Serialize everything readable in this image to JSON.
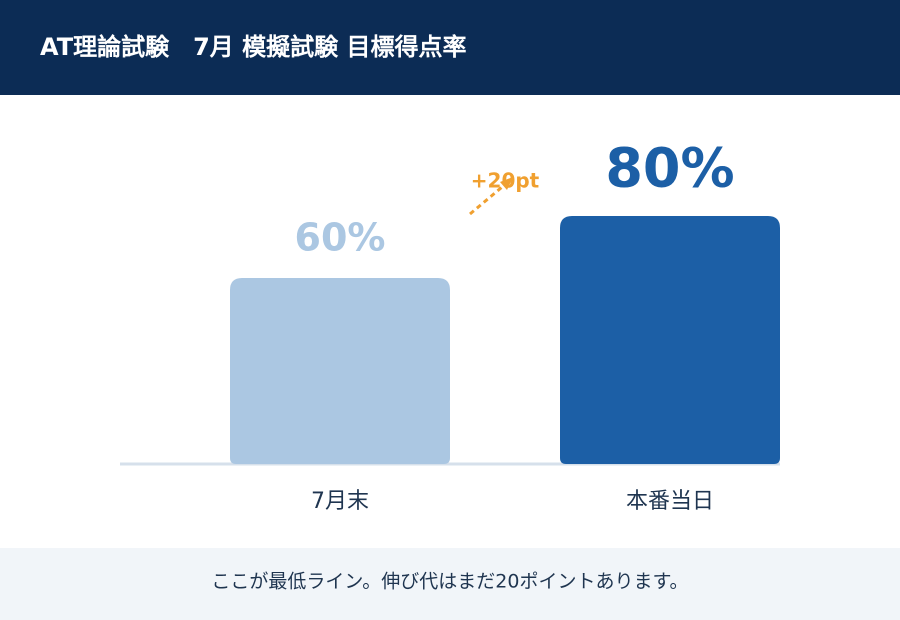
{
  "chart_data": {
    "type": "bar",
    "title": "AT理論試験　7月 模擬試験 目標得点率",
    "categories": [
      "7月末",
      "本番当日"
    ],
    "values": [
      60,
      80
    ],
    "value_labels": [
      "60%",
      "80%"
    ],
    "colors": [
      "#abc7e2",
      "#1c5fa6"
    ],
    "ylim": [
      0,
      100
    ],
    "annotation": "+20pt",
    "annotation_color": "#f0a030",
    "footnote": "ここが最低ライン。伸び代はまだ20ポイントあります。"
  }
}
